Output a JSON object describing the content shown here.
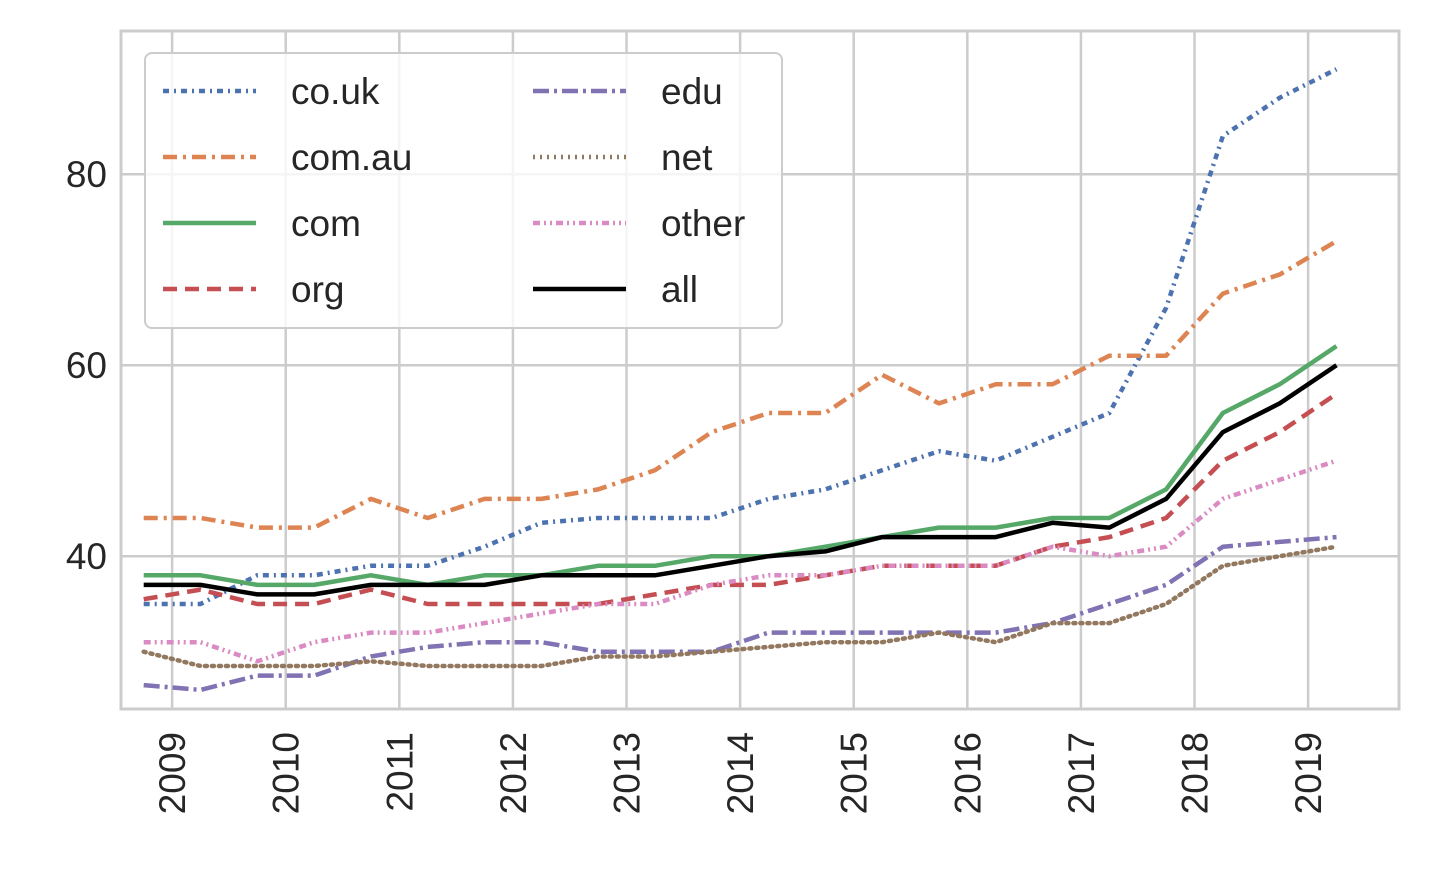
{
  "chart_data": {
    "type": "line",
    "title": "",
    "xlabel": "",
    "ylabel": "",
    "x_ticks": [
      "2009",
      "2010",
      "2011",
      "2012",
      "2013",
      "2014",
      "2015",
      "2016",
      "2017",
      "2018",
      "2019"
    ],
    "y_ticks": [
      "40",
      "60",
      "80"
    ],
    "xlim": [
      2008.55,
      2019.8
    ],
    "ylim": [
      24,
      95
    ],
    "grid": true,
    "legend_position": "top-left",
    "legend_columns": 2,
    "x": [
      2008.75,
      2009.25,
      2009.75,
      2010.25,
      2010.75,
      2011.25,
      2011.75,
      2012.25,
      2012.75,
      2013.25,
      2013.75,
      2014.25,
      2014.75,
      2015.25,
      2015.75,
      2016.25,
      2016.75,
      2017.25,
      2017.75,
      2018.25,
      2018.75,
      2019.25
    ],
    "series": [
      {
        "name": "co.uk",
        "color": "#4c72b0",
        "dash": "6,5,2,5",
        "values": [
          35,
          35,
          38,
          38,
          39,
          39,
          41,
          43.5,
          44,
          44,
          44,
          46,
          47,
          49,
          51,
          50,
          52.5,
          55,
          66,
          84,
          88,
          91
        ]
      },
      {
        "name": "com.au",
        "color": "#dd8452",
        "dash": "14,6,3,6",
        "values": [
          44,
          44,
          43,
          43,
          46,
          44,
          46,
          46,
          47,
          49,
          53,
          55,
          55,
          59,
          56,
          58,
          58,
          61,
          61,
          67.5,
          69.5,
          73
        ]
      },
      {
        "name": "com",
        "color": "#55a868",
        "dash": "",
        "values": [
          38,
          38,
          37,
          37,
          38,
          37,
          38,
          38,
          39,
          39,
          40,
          40,
          41,
          42,
          43,
          43,
          44,
          44,
          47,
          55,
          58,
          62
        ]
      },
      {
        "name": "org",
        "color": "#c44e52",
        "dash": "14,8",
        "values": [
          35.5,
          36.5,
          35,
          35,
          36.5,
          35,
          35,
          35,
          35,
          36,
          37,
          37,
          38,
          39,
          39,
          39,
          41,
          42,
          44,
          50,
          53,
          57
        ]
      },
      {
        "name": "edu",
        "color": "#8172b3",
        "dash": "16,5,3,5",
        "values": [
          26.5,
          26,
          27.5,
          27.5,
          29.5,
          30.5,
          31,
          31,
          30,
          30,
          30,
          32,
          32,
          32,
          32,
          32,
          33,
          35,
          37,
          41,
          41.5,
          42
        ]
      },
      {
        "name": "net",
        "color": "#937860",
        "dash": "2,5",
        "values": [
          30,
          28.5,
          28.5,
          28.5,
          29,
          28.5,
          28.5,
          28.5,
          29.5,
          29.5,
          30,
          30.5,
          31,
          31,
          32,
          31,
          33,
          33,
          35,
          39,
          40,
          41
        ]
      },
      {
        "name": "other",
        "color": "#da8bc3",
        "dash": "7,4,2,4,2,4",
        "values": [
          31,
          31,
          29,
          31,
          32,
          32,
          33,
          34,
          35,
          35,
          37,
          38,
          38,
          39,
          39,
          39,
          41,
          40,
          41,
          46,
          48,
          50
        ]
      },
      {
        "name": "all",
        "color": "#000000",
        "dash": "",
        "values": [
          37,
          37,
          36,
          36,
          37,
          37,
          37,
          38,
          38,
          38,
          39,
          40,
          40.5,
          42,
          42,
          42,
          43.5,
          43,
          46,
          53,
          56,
          60
        ]
      }
    ]
  }
}
